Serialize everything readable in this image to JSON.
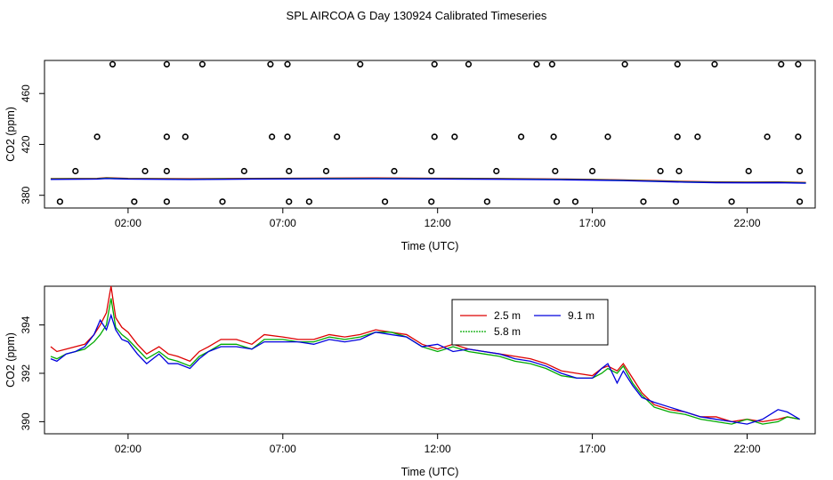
{
  "title": "SPL AIRCOA G  Day 130924  Calibrated Timeseries",
  "colors": {
    "s25": "#dd0000",
    "s58": "#00aa00",
    "s91": "#0000dd",
    "axis": "#000000"
  },
  "chart_data": [
    {
      "type": "scatter",
      "name": "top-panel",
      "xlabel": "Time (UTC)",
      "ylabel": "CO2 (ppm)",
      "xlim": [
        -0.7,
        24.2
      ],
      "ylim": [
        370,
        486
      ],
      "xticks": [
        2,
        7,
        12,
        17,
        22
      ],
      "xtick_labels": [
        "02:00",
        "07:00",
        "12:00",
        "17:00",
        "22:00"
      ],
      "yticks": [
        380,
        420,
        460
      ],
      "ytick_labels": [
        "380",
        "420",
        "460"
      ],
      "outlier_points": [
        {
          "x": 1.5,
          "y": 483
        },
        {
          "x": 3.25,
          "y": 483
        },
        {
          "x": 4.4,
          "y": 483
        },
        {
          "x": 6.6,
          "y": 483
        },
        {
          "x": 7.15,
          "y": 483
        },
        {
          "x": 9.5,
          "y": 483
        },
        {
          "x": 11.9,
          "y": 483
        },
        {
          "x": 13.0,
          "y": 483
        },
        {
          "x": 15.2,
          "y": 483
        },
        {
          "x": 15.7,
          "y": 483
        },
        {
          "x": 18.05,
          "y": 483
        },
        {
          "x": 19.75,
          "y": 483
        },
        {
          "x": 20.95,
          "y": 483
        },
        {
          "x": 23.1,
          "y": 483
        },
        {
          "x": 23.65,
          "y": 483
        },
        {
          "x": 1.0,
          "y": 426
        },
        {
          "x": 3.25,
          "y": 426
        },
        {
          "x": 3.85,
          "y": 426
        },
        {
          "x": 6.65,
          "y": 426
        },
        {
          "x": 7.15,
          "y": 426
        },
        {
          "x": 8.75,
          "y": 426
        },
        {
          "x": 11.9,
          "y": 426
        },
        {
          "x": 12.55,
          "y": 426
        },
        {
          "x": 14.7,
          "y": 426
        },
        {
          "x": 15.75,
          "y": 426
        },
        {
          "x": 17.5,
          "y": 426
        },
        {
          "x": 19.75,
          "y": 426
        },
        {
          "x": 20.4,
          "y": 426
        },
        {
          "x": 22.65,
          "y": 426
        },
        {
          "x": 23.65,
          "y": 426
        },
        {
          "x": 0.3,
          "y": 399
        },
        {
          "x": 2.55,
          "y": 399
        },
        {
          "x": 3.25,
          "y": 399
        },
        {
          "x": 5.75,
          "y": 399
        },
        {
          "x": 7.2,
          "y": 399
        },
        {
          "x": 8.4,
          "y": 399
        },
        {
          "x": 10.6,
          "y": 399
        },
        {
          "x": 11.8,
          "y": 399
        },
        {
          "x": 13.9,
          "y": 399
        },
        {
          "x": 15.8,
          "y": 399
        },
        {
          "x": 17.0,
          "y": 399
        },
        {
          "x": 19.2,
          "y": 399
        },
        {
          "x": 19.8,
          "y": 399
        },
        {
          "x": 22.05,
          "y": 399
        },
        {
          "x": 23.7,
          "y": 399
        },
        {
          "x": -0.2,
          "y": 375
        },
        {
          "x": 2.2,
          "y": 375
        },
        {
          "x": 3.25,
          "y": 375
        },
        {
          "x": 5.05,
          "y": 375
        },
        {
          "x": 7.2,
          "y": 375
        },
        {
          "x": 7.85,
          "y": 375
        },
        {
          "x": 10.3,
          "y": 375
        },
        {
          "x": 11.8,
          "y": 375
        },
        {
          "x": 13.6,
          "y": 375
        },
        {
          "x": 15.85,
          "y": 375
        },
        {
          "x": 16.45,
          "y": 375
        },
        {
          "x": 18.65,
          "y": 375
        },
        {
          "x": 19.7,
          "y": 375
        },
        {
          "x": 21.5,
          "y": 375
        },
        {
          "x": 23.7,
          "y": 375
        }
      ],
      "series_line": {
        "x": [
          -0.5,
          1,
          1.3,
          2,
          4,
          6,
          8,
          10,
          12,
          14,
          16,
          17,
          18,
          19,
          20,
          21,
          22,
          23,
          23.9
        ],
        "y": [
          392.8,
          393,
          393.5,
          393,
          392.7,
          393,
          393.2,
          393.3,
          393.1,
          392.9,
          392.5,
          392.2,
          391.8,
          391.2,
          390.6,
          390.2,
          390.1,
          390.2,
          389.8
        ]
      }
    },
    {
      "type": "line",
      "name": "bottom-panel",
      "xlabel": "Time (UTC)",
      "ylabel": "CO2 (ppm)",
      "xlim": [
        -0.7,
        24.2
      ],
      "ylim": [
        389.5,
        395.6
      ],
      "xticks": [
        2,
        7,
        12,
        17,
        22
      ],
      "xtick_labels": [
        "02:00",
        "07:00",
        "12:00",
        "17:00",
        "22:00"
      ],
      "yticks": [
        390,
        392,
        394
      ],
      "ytick_labels": [
        "390",
        "392",
        "394"
      ],
      "legend": {
        "position": "top-center",
        "entries": [
          "2.5 m",
          "5.8 m",
          "9.1 m"
        ]
      },
      "series": [
        {
          "name": "2.5 m",
          "x": [
            -0.5,
            -0.3,
            0,
            0.3,
            0.6,
            0.9,
            1.1,
            1.3,
            1.45,
            1.6,
            1.8,
            2.0,
            2.3,
            2.6,
            3.0,
            3.3,
            3.6,
            4.0,
            4.3,
            4.6,
            5.0,
            5.5,
            6.0,
            6.4,
            7.0,
            7.5,
            8.0,
            8.5,
            9.0,
            9.5,
            10.0,
            10.5,
            11.0,
            11.5,
            12.0,
            12.5,
            13.0,
            13.5,
            14.0,
            14.5,
            15.0,
            15.5,
            16.0,
            16.5,
            17.0,
            17.3,
            17.5,
            17.8,
            18.0,
            18.3,
            18.6,
            19.0,
            19.5,
            20.0,
            20.5,
            21.0,
            21.5,
            22.0,
            22.5,
            23.0,
            23.3,
            23.7
          ],
          "y": [
            393.1,
            392.9,
            393.0,
            393.1,
            393.2,
            393.6,
            394.0,
            394.5,
            395.6,
            394.3,
            393.9,
            393.7,
            393.2,
            392.8,
            393.1,
            392.8,
            392.7,
            392.5,
            392.9,
            393.1,
            393.4,
            393.4,
            393.2,
            393.6,
            393.5,
            393.4,
            393.4,
            393.6,
            393.5,
            393.6,
            393.8,
            393.7,
            393.6,
            393.2,
            393.0,
            393.2,
            393.0,
            392.9,
            392.8,
            392.7,
            392.6,
            392.4,
            392.1,
            392.0,
            391.9,
            392.2,
            392.3,
            392.1,
            392.4,
            391.8,
            391.2,
            390.7,
            390.5,
            390.4,
            390.2,
            390.2,
            390.0,
            390.1,
            390.0,
            390.1,
            390.2,
            390.1
          ]
        },
        {
          "name": "5.8 m",
          "x": [
            -0.5,
            -0.3,
            0,
            0.3,
            0.6,
            0.9,
            1.1,
            1.3,
            1.45,
            1.6,
            1.8,
            2.0,
            2.3,
            2.6,
            3.0,
            3.3,
            3.6,
            4.0,
            4.3,
            4.6,
            5.0,
            5.5,
            6.0,
            6.4,
            7.0,
            7.5,
            8.0,
            8.5,
            9.0,
            9.5,
            10.0,
            10.5,
            11.0,
            11.5,
            12.0,
            12.5,
            13.0,
            13.5,
            14.0,
            14.5,
            15.0,
            15.5,
            16.0,
            16.5,
            17.0,
            17.3,
            17.5,
            17.8,
            18.0,
            18.3,
            18.6,
            19.0,
            19.5,
            20.0,
            20.5,
            21.0,
            21.5,
            22.0,
            22.5,
            23.0,
            23.3,
            23.7
          ],
          "y": [
            392.7,
            392.6,
            392.8,
            392.9,
            393.0,
            393.3,
            393.6,
            394.0,
            395.1,
            393.9,
            393.6,
            393.4,
            393.0,
            392.6,
            392.9,
            392.6,
            392.5,
            392.3,
            392.7,
            392.9,
            393.2,
            393.2,
            393.0,
            393.4,
            393.4,
            393.3,
            393.3,
            393.5,
            393.4,
            393.5,
            393.7,
            393.7,
            393.5,
            393.1,
            392.9,
            393.1,
            392.9,
            392.8,
            392.7,
            392.5,
            392.4,
            392.2,
            391.9,
            391.8,
            391.8,
            392.0,
            392.2,
            392.0,
            392.3,
            391.6,
            391.1,
            390.6,
            390.4,
            390.3,
            390.1,
            390.0,
            389.9,
            390.1,
            389.9,
            390.0,
            390.2,
            390.1
          ]
        },
        {
          "name": "9.1 m",
          "x": [
            -0.5,
            -0.3,
            0,
            0.3,
            0.6,
            0.9,
            1.1,
            1.3,
            1.45,
            1.6,
            1.8,
            2.0,
            2.3,
            2.6,
            3.0,
            3.3,
            3.6,
            4.0,
            4.3,
            4.6,
            5.0,
            5.5,
            6.0,
            6.4,
            7.0,
            7.5,
            8.0,
            8.5,
            9.0,
            9.5,
            10.0,
            10.5,
            11.0,
            11.5,
            12.0,
            12.5,
            13.0,
            13.5,
            14.0,
            14.5,
            15.0,
            15.5,
            16.0,
            16.5,
            17.0,
            17.3,
            17.5,
            17.8,
            18.0,
            18.3,
            18.6,
            19.0,
            19.5,
            20.0,
            20.5,
            21.0,
            21.5,
            22.0,
            22.5,
            23.0,
            23.3,
            23.7
          ],
          "y": [
            392.6,
            392.5,
            392.8,
            392.9,
            393.1,
            393.6,
            394.2,
            393.8,
            394.4,
            393.8,
            393.4,
            393.3,
            392.8,
            392.4,
            392.8,
            392.4,
            392.4,
            392.2,
            392.6,
            392.9,
            393.1,
            393.1,
            393.0,
            393.3,
            393.3,
            393.3,
            393.2,
            393.4,
            393.3,
            393.4,
            393.7,
            393.6,
            393.5,
            393.1,
            393.2,
            392.9,
            393.0,
            392.9,
            392.8,
            392.6,
            392.5,
            392.3,
            392.0,
            391.8,
            391.8,
            392.2,
            392.4,
            391.6,
            392.1,
            391.5,
            391.0,
            390.8,
            390.6,
            390.4,
            390.2,
            390.1,
            390.0,
            389.9,
            390.1,
            390.5,
            390.4,
            390.1
          ]
        }
      ]
    }
  ]
}
